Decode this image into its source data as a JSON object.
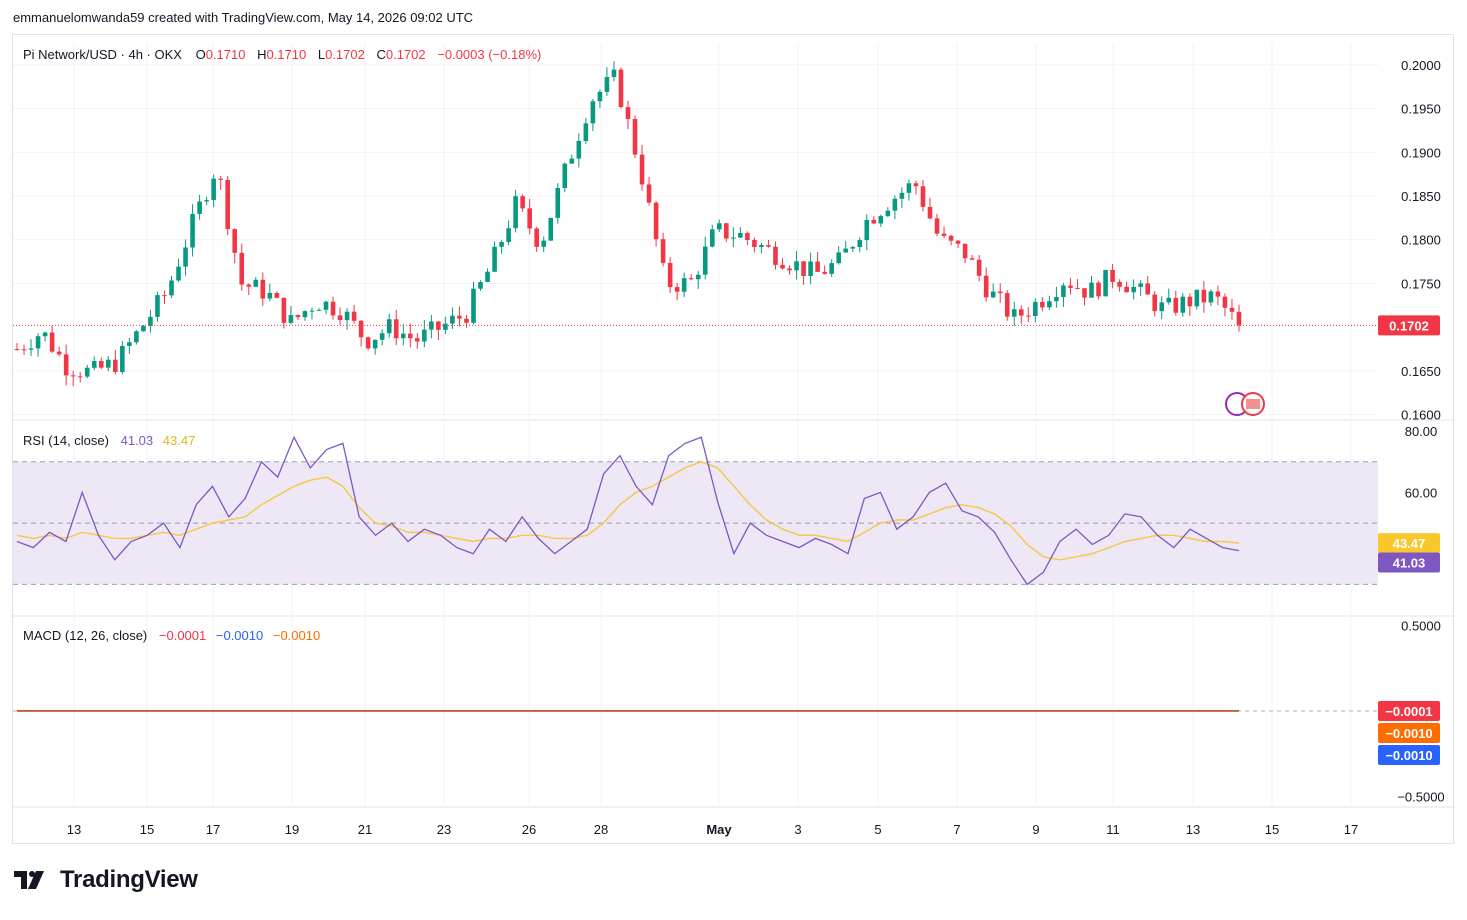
{
  "header": {
    "attribution": "emmanuelomwanda59 created with TradingView.com, May 14, 2026 09:02 UTC"
  },
  "legend": {
    "symbol": "Pi Network/USD · 4h · OKX",
    "o_label": "O",
    "o_value": "0.1710",
    "h_label": "H",
    "h_value": "0.1710",
    "l_label": "L",
    "l_value": "0.1702",
    "c_label": "C",
    "c_value": "0.1702",
    "change": "−0.0003 (−0.18%)"
  },
  "rsi_legend": {
    "name": "RSI (14, close)",
    "rsi_value": "41.03",
    "ma_value": "43.47"
  },
  "macd_legend": {
    "name": "MACD (12, 26, close)",
    "hist_value": "−0.0001",
    "macd_value": "−0.0010",
    "signal_value": "−0.0010"
  },
  "logo": {
    "text": "TradingView"
  },
  "colors": {
    "up": "#089981",
    "down": "#f23645",
    "rsi_line": "#7e57c2",
    "rsi_ma": "#f7c843",
    "rsi_band": "#ede7f6",
    "macd_line": "#2962ff",
    "signal_line": "#ff6d00",
    "grid": "#f0f3fa"
  },
  "chart_data": [
    {
      "type": "candlestick",
      "title": "Pi Network/USD · 4h · OKX",
      "x_tick_labels": [
        "13",
        "15",
        "17",
        "19",
        "21",
        "23",
        "26",
        "28",
        "May",
        "3",
        "5",
        "7",
        "9",
        "11",
        "13",
        "15",
        "17"
      ],
      "y_tick_labels": [
        "0.2000",
        "0.1950",
        "0.1900",
        "0.1850",
        "0.1800",
        "0.1750",
        "0.1650",
        "0.1600"
      ],
      "ylim": [
        0.1595,
        0.2025
      ],
      "last_price": 0.1702,
      "last_price_label": "0.1702",
      "approx_close_path": [
        [
          "Apr 12",
          0.1675
        ],
        [
          "Apr 13",
          0.1695
        ],
        [
          "Apr 13",
          0.1655
        ],
        [
          "Apr 14",
          0.1648
        ],
        [
          "Apr 15",
          0.166
        ],
        [
          "Apr 16",
          0.17
        ],
        [
          "Apr 17",
          0.174
        ],
        [
          "Apr 17",
          0.1815
        ],
        [
          "Apr 18",
          0.1885
        ],
        [
          "Apr 18",
          0.175
        ],
        [
          "Apr 19",
          0.174
        ],
        [
          "Apr 19",
          0.1705
        ],
        [
          "Apr 20",
          0.173
        ],
        [
          "Apr 21",
          0.172
        ],
        [
          "Apr 21",
          0.1685
        ],
        [
          "Apr 22",
          0.17
        ],
        [
          "Apr 23",
          0.1685
        ],
        [
          "Apr 24",
          0.17
        ],
        [
          "Apr 25",
          0.1715
        ],
        [
          "Apr 26",
          0.177
        ],
        [
          "Apr 26",
          0.184
        ],
        [
          "Apr 27",
          0.1795
        ],
        [
          "Apr 27",
          0.188
        ],
        [
          "Apr 28",
          0.196
        ],
        [
          "Apr 28",
          0.1985
        ],
        [
          "Apr 29",
          0.188
        ],
        [
          "Apr 29",
          0.175
        ],
        [
          "Apr 30",
          0.175
        ],
        [
          "May 1",
          0.181
        ],
        [
          "May 1",
          0.1805
        ],
        [
          "May 2",
          0.179
        ],
        [
          "May 3",
          0.1775
        ],
        [
          "May 4",
          0.176
        ],
        [
          "May 4",
          0.1775
        ],
        [
          "May 5",
          0.182
        ],
        [
          "May 6",
          0.1845
        ],
        [
          "May 6",
          0.1865
        ],
        [
          "May 7",
          0.18
        ],
        [
          "May 7",
          0.1785
        ],
        [
          "May 8",
          0.174
        ],
        [
          "May 8",
          0.171
        ],
        [
          "May 9",
          0.173
        ],
        [
          "May 9",
          0.1755
        ],
        [
          "May 10",
          0.174
        ],
        [
          "May 11",
          0.176
        ],
        [
          "May 11",
          0.174
        ],
        [
          "May 12",
          0.172
        ],
        [
          "May 13",
          0.173
        ],
        [
          "May 13",
          0.1735
        ],
        [
          "May 14",
          0.1702
        ]
      ]
    },
    {
      "type": "line",
      "title": "RSI (14, close)",
      "y_tick_labels": [
        "80.00",
        "60.00"
      ],
      "ylim": [
        20,
        82
      ],
      "band": [
        30,
        70
      ],
      "middle": 50,
      "last_rsi": 41.03,
      "last_ma": 43.47,
      "series": [
        {
          "name": "RSI",
          "values": [
            44,
            42,
            47,
            44,
            60,
            46,
            38,
            44,
            46,
            50,
            42,
            56,
            62,
            52,
            58,
            70,
            65,
            78,
            68,
            74,
            76,
            52,
            46,
            50,
            44,
            48,
            46,
            42,
            40,
            48,
            44,
            52,
            45,
            40,
            44,
            48,
            66,
            72,
            62,
            56,
            72,
            76,
            78,
            57,
            40,
            50,
            46,
            44,
            42,
            45,
            43,
            40,
            58,
            60,
            48,
            52,
            60,
            63,
            54,
            52,
            47,
            38,
            30,
            34,
            44,
            48,
            43,
            46,
            53,
            52,
            46,
            42,
            48,
            45,
            42,
            41
          ]
        },
        {
          "name": "RSI MA",
          "values": [
            46,
            45,
            46,
            45,
            47,
            46,
            45,
            45,
            46,
            47,
            46,
            48,
            50,
            51,
            52,
            56,
            59,
            62,
            64,
            65,
            62,
            55,
            50,
            49,
            47,
            47,
            46,
            45,
            44,
            45,
            45,
            46,
            46,
            45,
            45,
            46,
            50,
            56,
            60,
            62,
            65,
            68,
            70,
            68,
            62,
            56,
            51,
            48,
            46,
            46,
            45,
            44,
            47,
            50,
            51,
            51,
            53,
            55,
            56,
            55,
            53,
            49,
            43,
            39,
            38,
            39,
            40,
            42,
            44,
            45,
            46,
            46,
            45,
            44,
            44,
            43.47
          ]
        }
      ]
    },
    {
      "type": "line",
      "title": "MACD (12, 26, close)",
      "y_tick_labels": [
        "0.5000",
        "−0.5000"
      ],
      "ylim": [
        -0.55,
        0.55
      ],
      "last_histogram": -0.0001,
      "last_macd": -0.001,
      "last_signal": -0.001,
      "histogram_label": "−0.0001",
      "macd_label": "−0.0010",
      "signal_label": "−0.0010"
    }
  ]
}
